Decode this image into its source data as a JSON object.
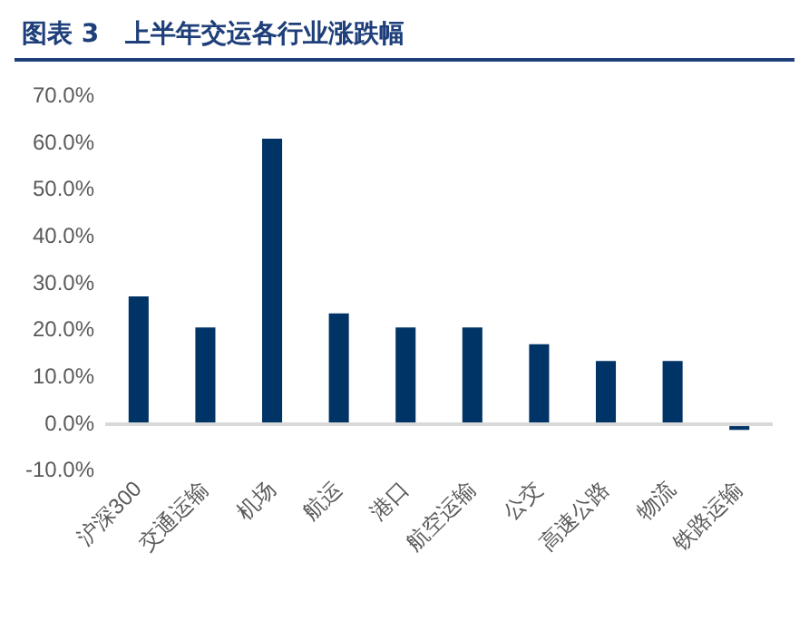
{
  "chart_data": {
    "type": "bar",
    "title": "图表 3   上半年交运各行业涨跌幅",
    "categories": [
      "沪深300",
      "交通运输",
      "机场",
      "航运",
      "港口",
      "航空运输",
      "公交",
      "高速公路",
      "物流",
      "铁路运输"
    ],
    "values": [
      27.3,
      20.7,
      61.0,
      23.7,
      20.7,
      20.7,
      17.1,
      13.5,
      13.5,
      -1.2
    ],
    "color": "#003366",
    "ylim": [
      -10,
      70
    ],
    "yticks": [
      {
        "value": -10,
        "label": "-10.0%"
      },
      {
        "value": 0,
        "label": "0.0%"
      },
      {
        "value": 10,
        "label": "10.0%"
      },
      {
        "value": 20,
        "label": "20.0%"
      },
      {
        "value": 30,
        "label": "30.0%"
      },
      {
        "value": 40,
        "label": "40.0%"
      },
      {
        "value": 50,
        "label": "50.0%"
      },
      {
        "value": 60,
        "label": "60.0%"
      },
      {
        "value": 70,
        "label": "70.0%"
      }
    ],
    "grid": false,
    "legend": false
  }
}
